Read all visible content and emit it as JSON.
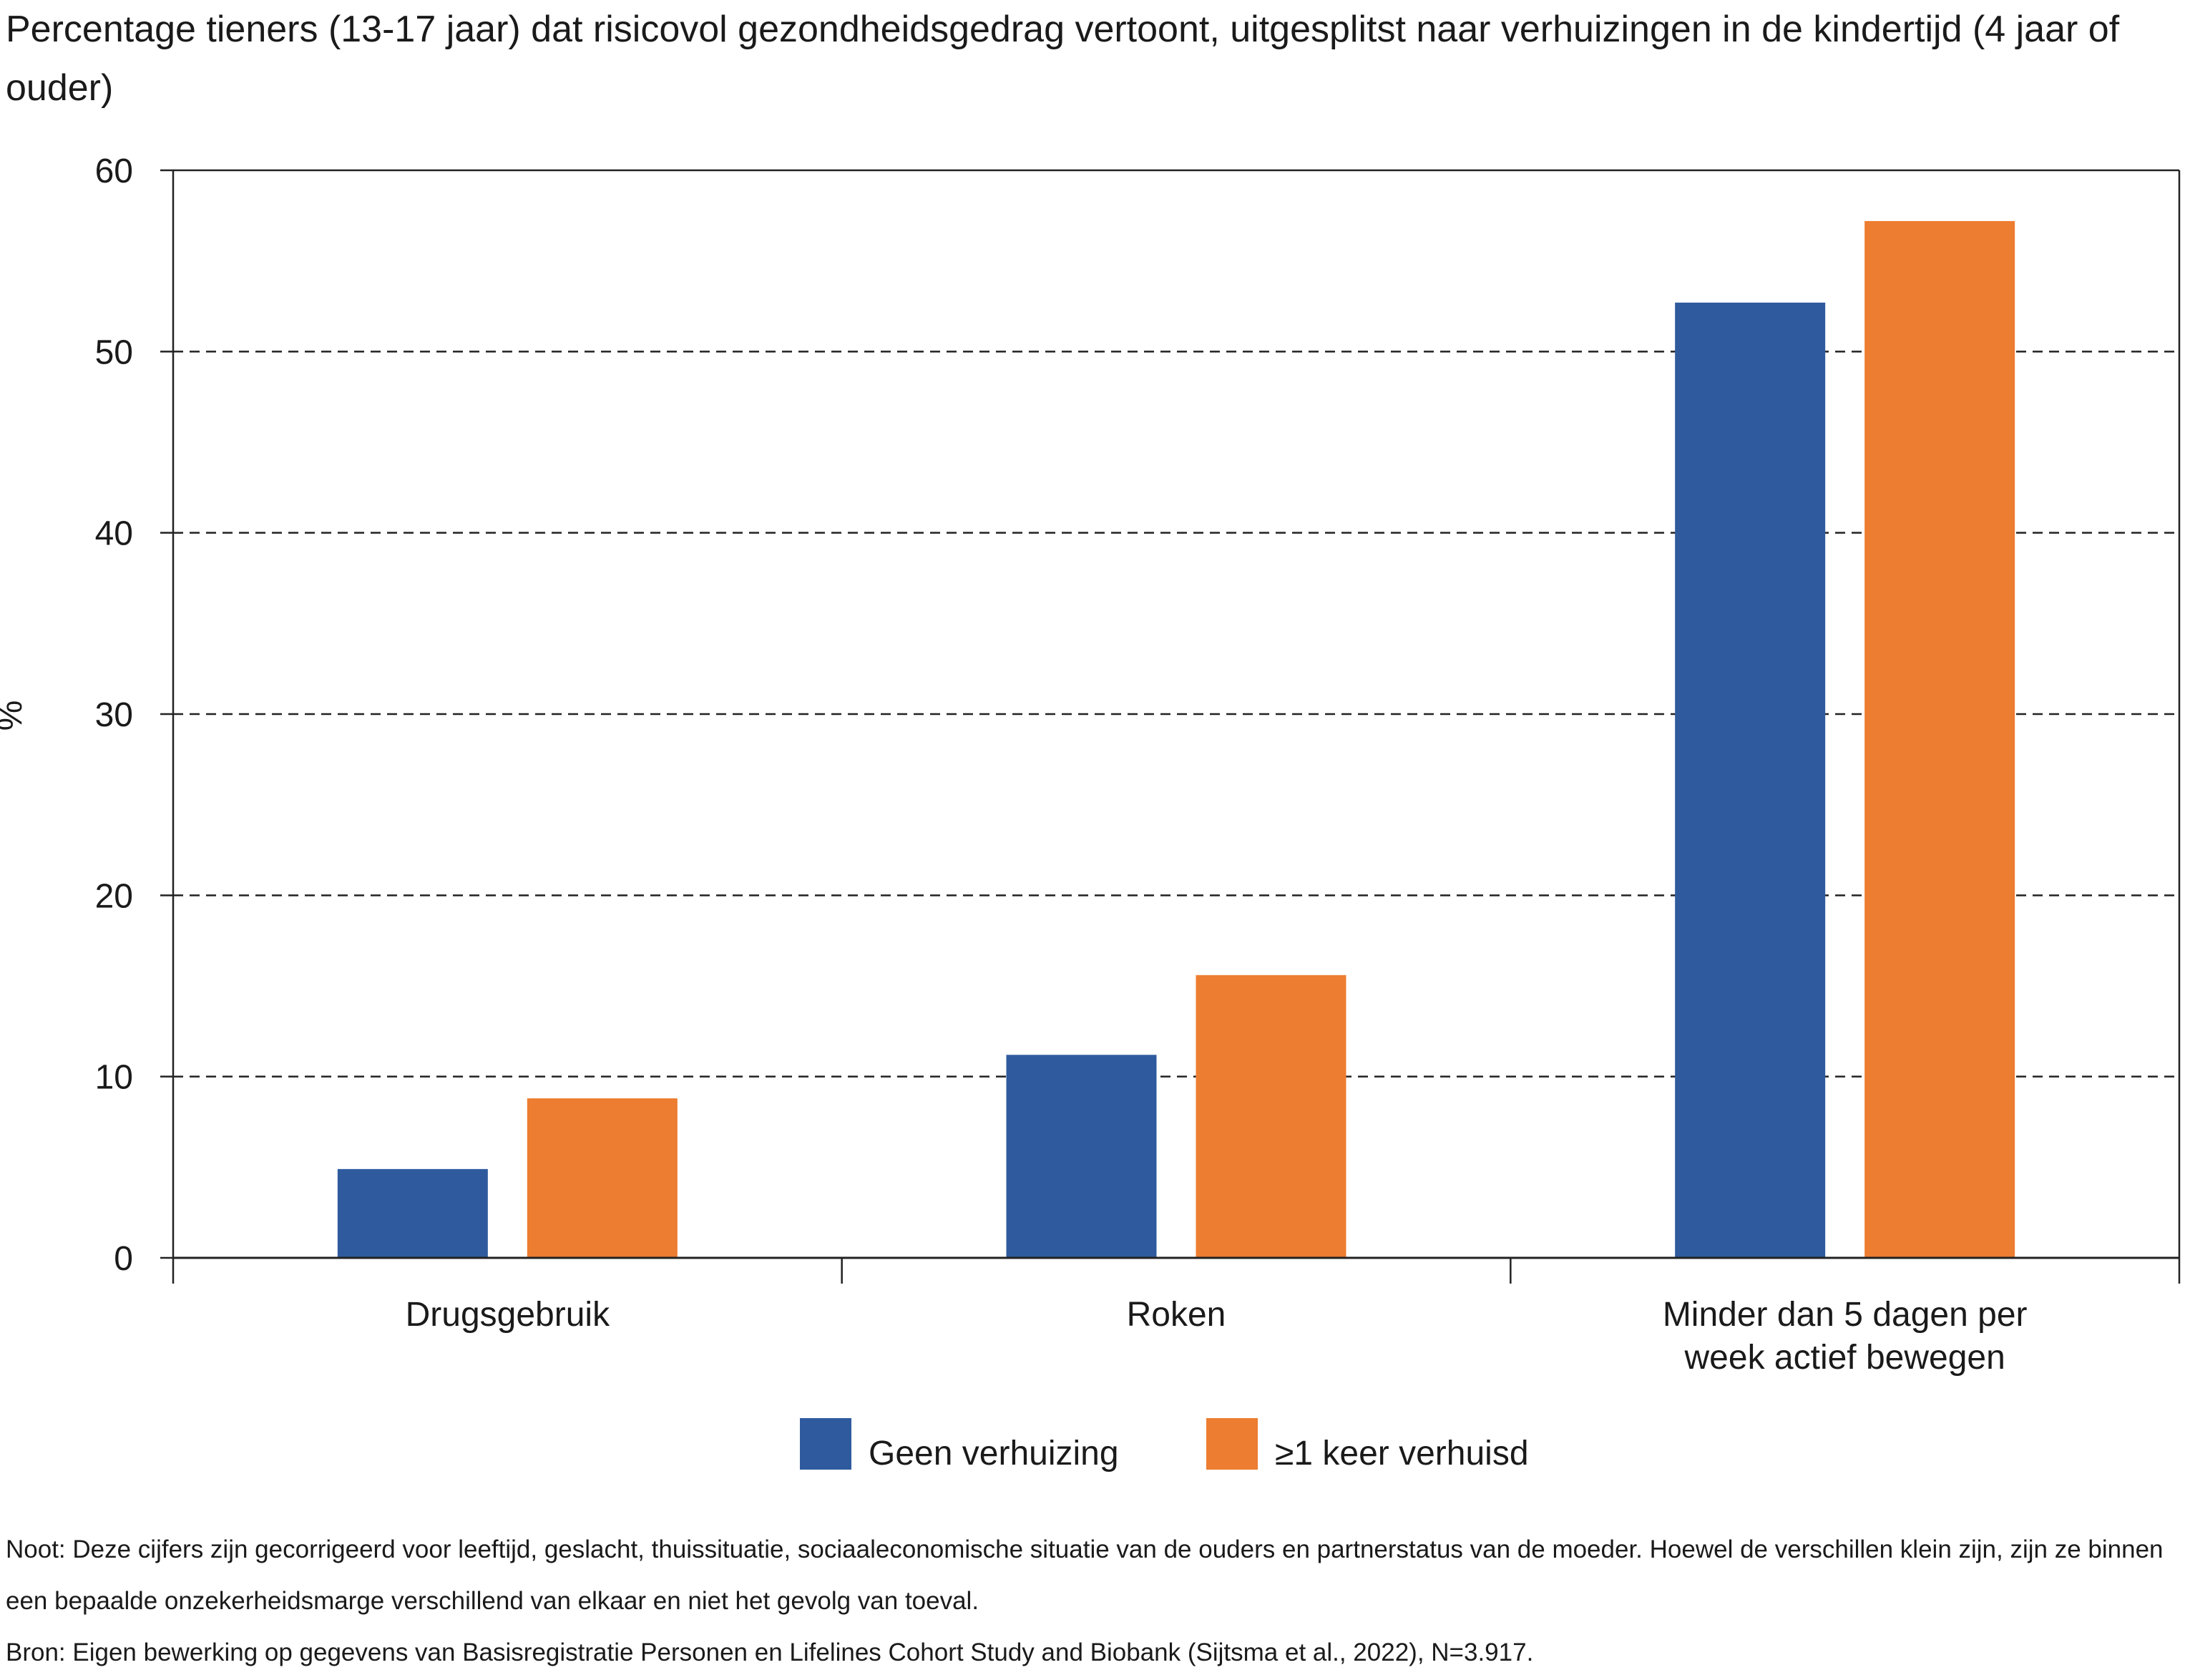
{
  "chart_data": {
    "type": "bar",
    "title": "Percentage tieners (13-17 jaar) dat risicovol gezondheidsgedrag vertoont, uitgesplitst naar verhuizingen in de kindertijd (4 jaar of ouder)",
    "ylabel": "%",
    "xlabel": "",
    "ylim": [
      0,
      60
    ],
    "yticks": [
      "0",
      "10",
      "20",
      "30",
      "40",
      "50",
      "60"
    ],
    "categories": [
      [
        "Drugsgebruik"
      ],
      [
        "Roken"
      ],
      [
        "Minder dan 5 dagen per",
        "week actief bewegen"
      ]
    ],
    "series": [
      {
        "name": "Geen verhuizing",
        "color": "#2f5b9e",
        "values": [
          4.9,
          11.2,
          52.7
        ]
      },
      {
        "name": "≥1 keer verhuisd",
        "color": "#ed7d31",
        "values": [
          8.8,
          15.6,
          57.2
        ]
      }
    ],
    "grid": "horizontal dashed",
    "legend": "bottom-center"
  },
  "notes": {
    "noot": "Noot: Deze cijfers zijn gecorrigeerd voor leeftijd, geslacht, thuissituatie, sociaaleconomische situatie van de ouders en partnerstatus van de moeder. Hoewel de verschillen klein zijn, zijn ze binnen een bepaalde onzekerheidsmarge verschillend van elkaar en niet het gevolg van toeval.",
    "bron": "Bron: Eigen bewerking op gegevens van Basisregistratie Personen en Lifelines Cohort Study and Biobank (Sijtsma et al., 2022), N=3.917."
  }
}
